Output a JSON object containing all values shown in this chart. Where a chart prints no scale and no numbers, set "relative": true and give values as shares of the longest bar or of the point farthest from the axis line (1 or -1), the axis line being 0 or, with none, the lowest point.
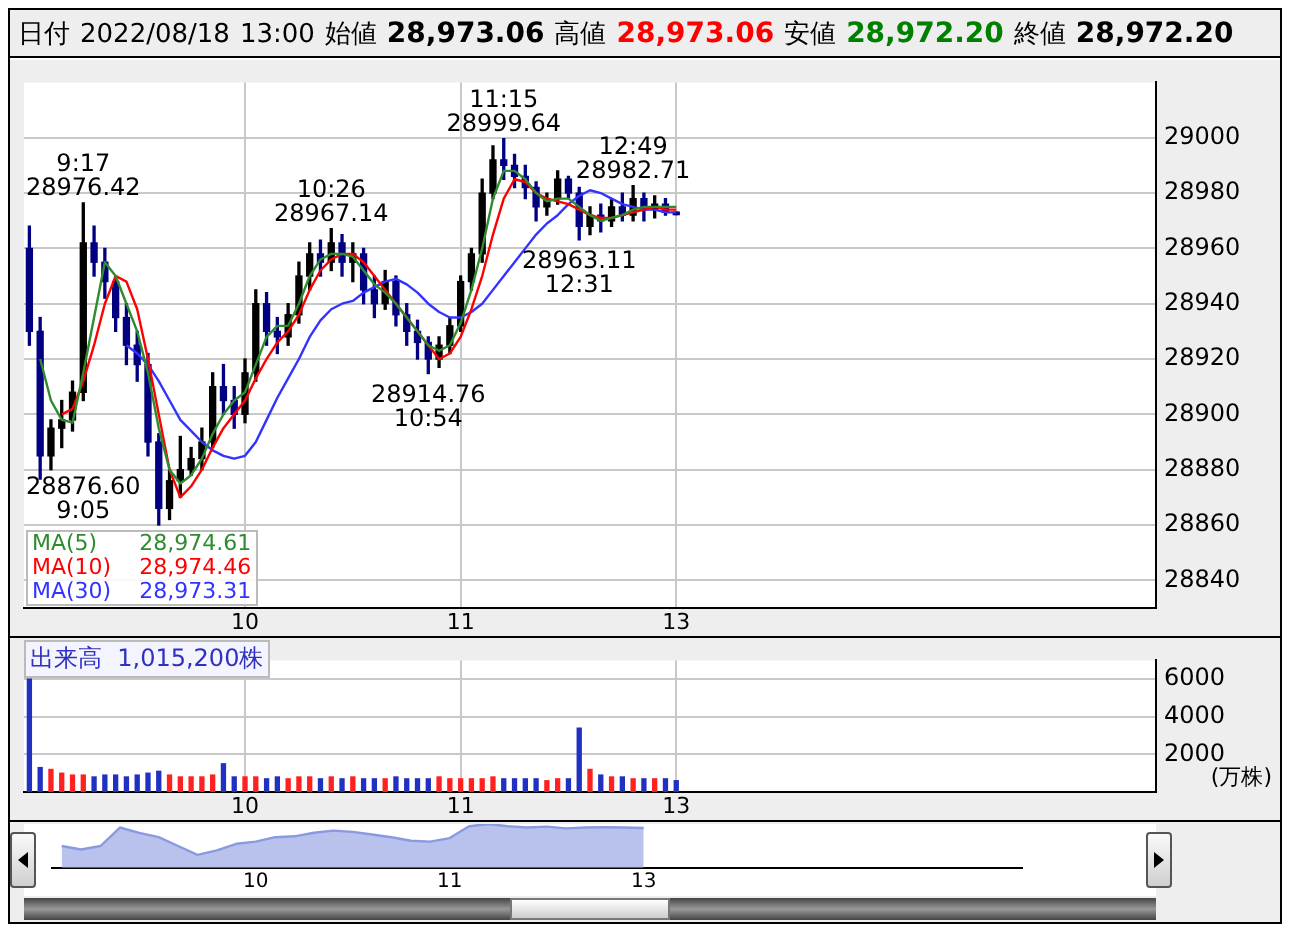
{
  "chart_data": [
    {
      "type": "candlestick",
      "title": "日付 2022/08/18 13:00 始値 28,973.06 高値 28,973.06 安値 28,972.20 終値 28,972.20",
      "categories": [
        null,
        null,
        null,
        null,
        null,
        null,
        null,
        null,
        null,
        null,
        null,
        null,
        null,
        null,
        null,
        null,
        null,
        null,
        null,
        null,
        "10",
        null,
        null,
        null,
        null,
        null,
        null,
        null,
        null,
        null,
        null,
        null,
        null,
        null,
        null,
        null,
        null,
        null,
        null,
        null,
        "11",
        null,
        null,
        null,
        null,
        null,
        null,
        null,
        null,
        null,
        null,
        null,
        null,
        null,
        null,
        null,
        null,
        null,
        null,
        null,
        "13",
        null,
        null,
        null,
        null,
        null,
        null,
        null,
        null,
        null,
        null,
        null,
        null,
        null,
        null,
        null,
        null,
        null,
        null,
        null,
        null,
        null,
        null,
        null,
        null,
        null,
        null,
        null,
        null,
        null,
        null,
        null,
        null,
        null,
        null,
        null,
        null,
        null,
        null,
        null,
        null,
        null,
        null,
        null,
        null
      ],
      "ohlc": [
        [
          28960,
          28968,
          28925,
          28930
        ],
        [
          28930,
          28935,
          28876.6,
          28885
        ],
        [
          28885,
          28898,
          28880,
          28895
        ],
        [
          28895,
          28905,
          28888,
          28898
        ],
        [
          28898,
          28912,
          28894,
          28908
        ],
        [
          28908,
          28976.42,
          28905,
          28962
        ],
        [
          28962,
          28968,
          28950,
          28955
        ],
        [
          28955,
          28960,
          28942,
          28948
        ],
        [
          28948,
          28950,
          28930,
          28935
        ],
        [
          28935,
          28940,
          28918,
          28925
        ],
        [
          28925,
          28930,
          28912,
          28918
        ],
        [
          28918,
          28922,
          28885,
          28890
        ],
        [
          28890,
          28893,
          28860,
          28866
        ],
        [
          28866,
          28880,
          28862,
          28876
        ],
        [
          28876,
          28892,
          28870,
          28880
        ],
        [
          28880,
          28888,
          28878,
          28884
        ],
        [
          28884,
          28895,
          28880,
          28890
        ],
        [
          28890,
          28915,
          28888,
          28910
        ],
        [
          28910,
          28918,
          28900,
          28905
        ],
        [
          28905,
          28910,
          28895,
          28900
        ],
        [
          28900,
          28920,
          28897,
          28915
        ],
        [
          28915,
          28945,
          28912,
          28940
        ],
        [
          28940,
          28944,
          28925,
          28930
        ],
        [
          28930,
          28935,
          28922,
          28928
        ],
        [
          28928,
          28940,
          28925,
          28936
        ],
        [
          28936,
          28955,
          28933,
          28950
        ],
        [
          28950,
          28962,
          28945,
          28958
        ],
        [
          28958,
          28963,
          28950,
          28955
        ],
        [
          28955,
          28967.14,
          28952,
          28962
        ],
        [
          28962,
          28965,
          28950,
          28955
        ],
        [
          28955,
          28962,
          28948,
          28958
        ],
        [
          28958,
          28960,
          28940,
          28945
        ],
        [
          28945,
          28950,
          28935,
          28940
        ],
        [
          28940,
          28952,
          28938,
          28948
        ],
        [
          28948,
          28950,
          28932,
          28936
        ],
        [
          28936,
          28940,
          28925,
          28930
        ],
        [
          28930,
          28934,
          28920,
          28926
        ],
        [
          28926,
          28928,
          28914.76,
          28920
        ],
        [
          28920,
          28928,
          28917,
          28925
        ],
        [
          28925,
          28935,
          28922,
          28932
        ],
        [
          28932,
          28950,
          28930,
          28948
        ],
        [
          28948,
          28960,
          28945,
          28958
        ],
        [
          28958,
          28985,
          28955,
          28980
        ],
        [
          28980,
          28997,
          28978,
          28992
        ],
        [
          28992,
          28999.64,
          28985,
          28990
        ],
        [
          28990,
          28994,
          28982,
          28986
        ],
        [
          28986,
          28990,
          28978,
          28982
        ],
        [
          28982,
          28984,
          28970,
          28975
        ],
        [
          28975,
          28980,
          28972,
          28978
        ],
        [
          28978,
          28988,
          28976,
          28985
        ],
        [
          28985,
          28986,
          28978,
          28980
        ],
        [
          28980,
          28982,
          28963.11,
          28968
        ],
        [
          28968,
          28975,
          28965,
          28972
        ],
        [
          28972,
          28976,
          28966,
          28970
        ],
        [
          28970,
          28978,
          28968,
          28975
        ],
        [
          28975,
          28980,
          28970,
          28972
        ],
        [
          28972,
          28982.71,
          28970,
          28978
        ],
        [
          28978,
          28980,
          28970,
          28974
        ],
        [
          28974,
          28979,
          28971,
          28976
        ],
        [
          28976,
          28978,
          28972,
          28973.06
        ],
        [
          28973.06,
          28973.06,
          28972.2,
          28972.2
        ],
        null,
        null,
        null,
        null,
        null,
        null,
        null,
        null,
        null,
        null,
        null,
        null,
        null,
        null,
        null,
        null,
        null,
        null,
        null,
        null,
        null,
        null,
        null,
        null,
        null,
        null,
        null,
        null,
        null,
        null,
        null,
        null,
        null,
        null,
        null,
        null,
        null,
        null,
        null,
        null,
        null,
        null,
        null,
        null
      ],
      "colors": [
        "#000080",
        "#000080",
        "#000000",
        "#000000",
        "#000000",
        "#000000",
        "#000080",
        "#000080",
        "#000080",
        "#000080",
        "#000080",
        "#000080",
        "#000080",
        "#000000",
        "#000000",
        "#000000",
        "#000000",
        "#000000",
        "#000080",
        "#000080",
        "#000000",
        "#000000",
        "#000080",
        "#000080",
        "#000000",
        "#000000",
        "#000000",
        "#000080",
        "#000000",
        "#000080",
        "#000000",
        "#000080",
        "#000080",
        "#000000",
        "#000080",
        "#000080",
        "#000080",
        "#000080",
        "#000000",
        "#000000",
        "#000000",
        "#000000",
        "#000000",
        "#000000",
        "#000080",
        "#000080",
        "#000080",
        "#000080",
        "#000000",
        "#000000",
        "#000080",
        "#000080",
        "#000000",
        "#000080",
        "#000000",
        "#000080",
        "#000000",
        "#000080",
        "#000000",
        "#000080",
        "#000080",
        null,
        null,
        null,
        null,
        null,
        null,
        null,
        null,
        null,
        null,
        null,
        null,
        null,
        null,
        null,
        null,
        null,
        null,
        null,
        null,
        null,
        null,
        null,
        null,
        null,
        null,
        null,
        null,
        null,
        null,
        null,
        null,
        null,
        null,
        null,
        null,
        null,
        null,
        null,
        null,
        null,
        null,
        null,
        null
      ],
      "series": [
        {
          "name": "MA(5)",
          "type": "line",
          "color": "#2e8b2e",
          "values": [
            null,
            28920,
            28905,
            28898,
            28897,
            28915,
            28935,
            28955,
            28950,
            28940,
            28930,
            28915,
            28895,
            28880,
            28875,
            28878,
            28884,
            28893,
            28900,
            28905,
            28908,
            28918,
            28928,
            28932,
            28932,
            28940,
            28950,
            28956,
            28958,
            28958,
            28957,
            28952,
            28947,
            28944,
            28940,
            28935,
            28930,
            28925,
            28923,
            28925,
            28933,
            28945,
            28960,
            28978,
            28988,
            28988,
            28985,
            28980,
            28977,
            28978,
            28978,
            28975,
            28972,
            28970,
            28971,
            28972,
            28974,
            28975,
            28975,
            28975,
            28975,
            null,
            null,
            null,
            null,
            null,
            null,
            null,
            null,
            null,
            null,
            null,
            null,
            null,
            null,
            null,
            null,
            null,
            null,
            null,
            null,
            null,
            null,
            null,
            null,
            null,
            null,
            null,
            null,
            null,
            null,
            null,
            null,
            null,
            null,
            null,
            null,
            null,
            null,
            null,
            null,
            null,
            null,
            null,
            null
          ]
        },
        {
          "name": "MA(10)",
          "type": "line",
          "color": "#ff0000",
          "values": [
            null,
            null,
            null,
            28900,
            28902,
            28912,
            28925,
            28940,
            28950,
            28948,
            28938,
            28920,
            28900,
            28880,
            28870,
            28874,
            28880,
            28888,
            28895,
            28900,
            28905,
            28913,
            28920,
            28926,
            28930,
            28936,
            28945,
            28952,
            28956,
            28958,
            28958,
            28955,
            28950,
            28945,
            28940,
            28935,
            28930,
            28925,
            28920,
            28922,
            28928,
            28938,
            28950,
            28965,
            28978,
            28985,
            28984,
            28980,
            28978,
            28977,
            28976,
            28974,
            28972,
            28971,
            28971,
            28972,
            28973,
            28974,
            28975,
            28974,
            28974,
            null,
            null,
            null,
            null,
            null,
            null,
            null,
            null,
            null,
            null,
            null,
            null,
            null,
            null,
            null,
            null,
            null,
            null,
            null,
            null,
            null,
            null,
            null,
            null,
            null,
            null,
            null,
            null,
            null,
            null,
            null,
            null,
            null,
            null,
            null,
            null,
            null,
            null,
            null,
            null,
            null,
            null,
            null,
            null
          ]
        },
        {
          "name": "MA(30)",
          "type": "line",
          "color": "#3333ff",
          "values": [
            null,
            null,
            null,
            null,
            null,
            null,
            null,
            null,
            null,
            28925,
            28922,
            28918,
            28912,
            28905,
            28898,
            28894,
            28890,
            28887,
            28885,
            28884,
            28885,
            28890,
            28898,
            28906,
            28913,
            28920,
            28928,
            28934,
            28938,
            28940,
            28941,
            28944,
            28946,
            28948,
            28949,
            28947,
            28944,
            28940,
            28937,
            28935,
            28935,
            28937,
            28940,
            28945,
            28950,
            28955,
            28960,
            28965,
            28969,
            28972,
            28976,
            28979,
            28981,
            28980,
            28978,
            28976,
            28975,
            28974,
            28974,
            28973,
            28973,
            null,
            null,
            null,
            null,
            null,
            null,
            null,
            null,
            null,
            null,
            null,
            null,
            null,
            null,
            null,
            null,
            null,
            null,
            null,
            null,
            null,
            null,
            null,
            null,
            null,
            null,
            null,
            null,
            null,
            null,
            null,
            null,
            null,
            null,
            null,
            null,
            null,
            null,
            null,
            null,
            null,
            null,
            null,
            null
          ]
        }
      ],
      "ylim": [
        28830,
        29020
      ],
      "yticks": [
        28840,
        28860,
        28880,
        28900,
        28920,
        28940,
        28960,
        28980,
        29000
      ],
      "grid": true,
      "legend": "bottom left",
      "annotations": [
        "28876.60\n9:05",
        {
          "text": "9:17\n28976.42",
          "y": 28976.42
        },
        {
          "text": "10:26\n28967.14",
          "y": 28967.14
        },
        {
          "text": "28914.76\n10:54",
          "y": 28914.76
        },
        {
          "text": "11:15\n28999.64",
          "y": 28999.64
        },
        {
          "text": "28963.11\n12:31",
          "y": 28963.11
        },
        {
          "text": "12:49\n28982.71",
          "y": 28982.71
        },
        "28,974.61",
        "28,974.46",
        "28,973.31"
      ]
    },
    {
      "type": "bar",
      "title": "出来高  1,015,200株",
      "ylabel": "(万株)",
      "categories": [
        null,
        null,
        null,
        null,
        null,
        null,
        null,
        null,
        null,
        null,
        null,
        null,
        null,
        null,
        null,
        null,
        null,
        null,
        null,
        null,
        "10",
        null,
        null,
        null,
        null,
        null,
        null,
        null,
        null,
        null,
        null,
        null,
        null,
        null,
        null,
        null,
        null,
        null,
        null,
        null,
        "11",
        null,
        null,
        null,
        null,
        null,
        null,
        null,
        null,
        null,
        null,
        null,
        null,
        null,
        null,
        null,
        null,
        null,
        null,
        null,
        "13",
        null,
        null,
        null,
        null,
        null,
        null,
        null,
        null,
        null,
        null,
        null,
        null,
        null,
        null,
        null,
        null,
        null,
        null,
        null,
        null,
        null,
        null,
        null,
        null,
        null,
        null,
        null,
        null,
        null,
        null,
        null,
        null,
        null,
        null,
        null,
        null,
        null,
        null,
        null,
        null,
        null,
        null,
        null,
        null
      ],
      "values": [
        6000,
        1300,
        1200,
        1000,
        900,
        900,
        800,
        900,
        900,
        800,
        900,
        1000,
        1100,
        900,
        800,
        800,
        800,
        900,
        1500,
        800,
        800,
        800,
        700,
        800,
        700,
        800,
        800,
        700,
        800,
        700,
        800,
        700,
        700,
        700,
        800,
        700,
        700,
        700,
        800,
        700,
        700,
        700,
        700,
        800,
        700,
        700,
        700,
        700,
        600,
        700,
        700,
        3400,
        1200,
        900,
        800,
        800,
        700,
        700,
        700,
        700,
        600,
        null,
        null,
        null,
        null,
        null,
        null,
        null,
        null,
        null,
        null,
        null,
        null,
        null,
        null,
        null,
        null,
        null,
        null,
        null,
        null,
        null,
        null,
        null,
        null,
        null,
        null,
        null,
        null,
        null,
        null,
        null,
        null,
        null,
        null,
        null,
        null,
        null,
        null,
        null,
        null,
        null,
        null,
        null,
        null
      ],
      "colors": [
        "#2030c0",
        "#2030c0",
        "#ff2020",
        "#ff2020",
        "#ff2020",
        "#ff2020",
        "#2030c0",
        "#2030c0",
        "#2030c0",
        "#2030c0",
        "#2030c0",
        "#2030c0",
        "#2030c0",
        "#ff2020",
        "#ff2020",
        "#ff2020",
        "#ff2020",
        "#ff2020",
        "#2030c0",
        "#2030c0",
        "#ff2020",
        "#ff2020",
        "#2030c0",
        "#2030c0",
        "#ff2020",
        "#ff2020",
        "#ff2020",
        "#2030c0",
        "#ff2020",
        "#2030c0",
        "#ff2020",
        "#2030c0",
        "#2030c0",
        "#ff2020",
        "#2030c0",
        "#2030c0",
        "#2030c0",
        "#2030c0",
        "#ff2020",
        "#ff2020",
        "#ff2020",
        "#ff2020",
        "#ff2020",
        "#ff2020",
        "#2030c0",
        "#2030c0",
        "#2030c0",
        "#2030c0",
        "#ff2020",
        "#ff2020",
        "#2030c0",
        "#2030c0",
        "#ff2020",
        "#2030c0",
        "#ff2020",
        "#2030c0",
        "#ff2020",
        "#2030c0",
        "#ff2020",
        "#2030c0",
        "#2030c0",
        null,
        null,
        null,
        null,
        null,
        null,
        null,
        null,
        null,
        null,
        null,
        null,
        null,
        null,
        null,
        null,
        null,
        null,
        null,
        null,
        null,
        null,
        null,
        null,
        null,
        null,
        null,
        null,
        null,
        null,
        null,
        null,
        null,
        null,
        null,
        null,
        null,
        null,
        null,
        null,
        null,
        null,
        null,
        null
      ],
      "ylim": [
        0,
        7000
      ],
      "yticks": [
        2000,
        4000,
        6000
      ],
      "grid": true
    },
    {
      "type": "area",
      "relative": true,
      "color": "#8a9ae0",
      "categories": [
        null,
        null,
        null,
        null,
        null,
        null,
        null,
        null,
        null,
        null,
        "10",
        null,
        null,
        null,
        null,
        null,
        null,
        null,
        null,
        null,
        "11",
        null,
        null,
        null,
        null,
        null,
        null,
        null,
        null,
        null,
        "13",
        null,
        null,
        null,
        null,
        null,
        null,
        null,
        null,
        null,
        null,
        null,
        null,
        null,
        null,
        null,
        null,
        null,
        null,
        null
      ],
      "values": [
        0.5,
        0.42,
        0.5,
        0.92,
        0.8,
        0.7,
        0.5,
        0.3,
        0.4,
        0.55,
        0.6,
        0.7,
        0.72,
        0.8,
        0.85,
        0.82,
        0.76,
        0.7,
        0.62,
        0.6,
        0.68,
        0.95,
        1,
        0.95,
        0.92,
        0.94,
        0.9,
        0.92,
        0.93,
        0.92,
        0.91,
        null,
        null,
        null,
        null,
        null,
        null,
        null,
        null,
        null,
        null,
        null,
        null,
        null,
        null,
        null,
        null,
        null,
        null,
        null
      ]
    }
  ]
}
